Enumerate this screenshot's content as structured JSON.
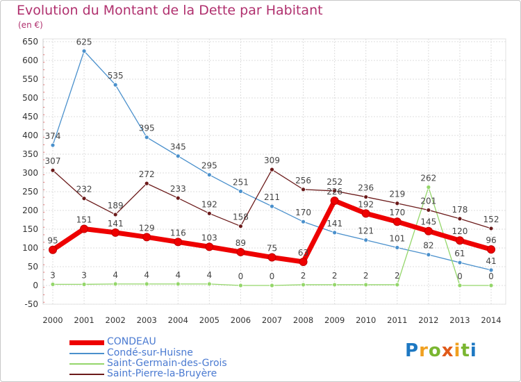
{
  "title": "Evolution du Montant de la Dette par Habitant",
  "subtitle": "(en €)",
  "logo_text": "Proxiti",
  "colors": {
    "title": "#b0306e",
    "grid": "#dddddd",
    "axis_text": "#333333",
    "value_label": "#444444"
  },
  "chart_data": {
    "type": "line",
    "title": "Evolution du Montant de la Dette par Habitant",
    "ylabel": "(en €)",
    "x": [
      "2000",
      "2001",
      "2002",
      "2003",
      "2004",
      "2005",
      "2006",
      "2007",
      "2008",
      "2009",
      "2010",
      "2011",
      "2012",
      "2013",
      "2014"
    ],
    "y_ticks": [
      "-50",
      "0",
      "50",
      "100",
      "150",
      "200",
      "250",
      "300",
      "350",
      "400",
      "450",
      "500",
      "550",
      "600",
      "650"
    ],
    "ylim": [
      -50,
      650
    ],
    "grid": true,
    "legend_position": "bottom-left",
    "series": [
      {
        "name": "CONDEAU",
        "color": "#ee0000",
        "width": 7,
        "marker_r": 5.5,
        "values": [
          95,
          151,
          141,
          129,
          116,
          103,
          89,
          75,
          63,
          226,
          192,
          170,
          145,
          120,
          96
        ]
      },
      {
        "name": "Condé-sur-Huisne",
        "color": "#4a90cc",
        "width": 1.3,
        "marker_r": 3,
        "values": [
          374,
          625,
          535,
          395,
          345,
          295,
          251,
          211,
          170,
          141,
          121,
          101,
          82,
          61,
          41
        ]
      },
      {
        "name": "Saint-Germain-des-Grois",
        "color": "#94d66a",
        "width": 1.3,
        "marker_r": 3,
        "values": [
          3,
          3,
          4,
          4,
          4,
          4,
          0,
          0,
          2,
          2,
          2,
          2,
          262,
          0,
          0
        ]
      },
      {
        "name": "Saint-Pierre-la-Bruyère",
        "color": "#6b1a1a",
        "width": 1.3,
        "marker_r": 3,
        "values": [
          307,
          232,
          189,
          272,
          233,
          192,
          158,
          309,
          256,
          252,
          236,
          219,
          201,
          178,
          152
        ]
      }
    ],
    "label_order": [
      "Condé-sur-Huisne",
      "Saint-Germain-des-Grois",
      "Saint-Pierre-la-Bruyère",
      "CONDEAU"
    ]
  }
}
